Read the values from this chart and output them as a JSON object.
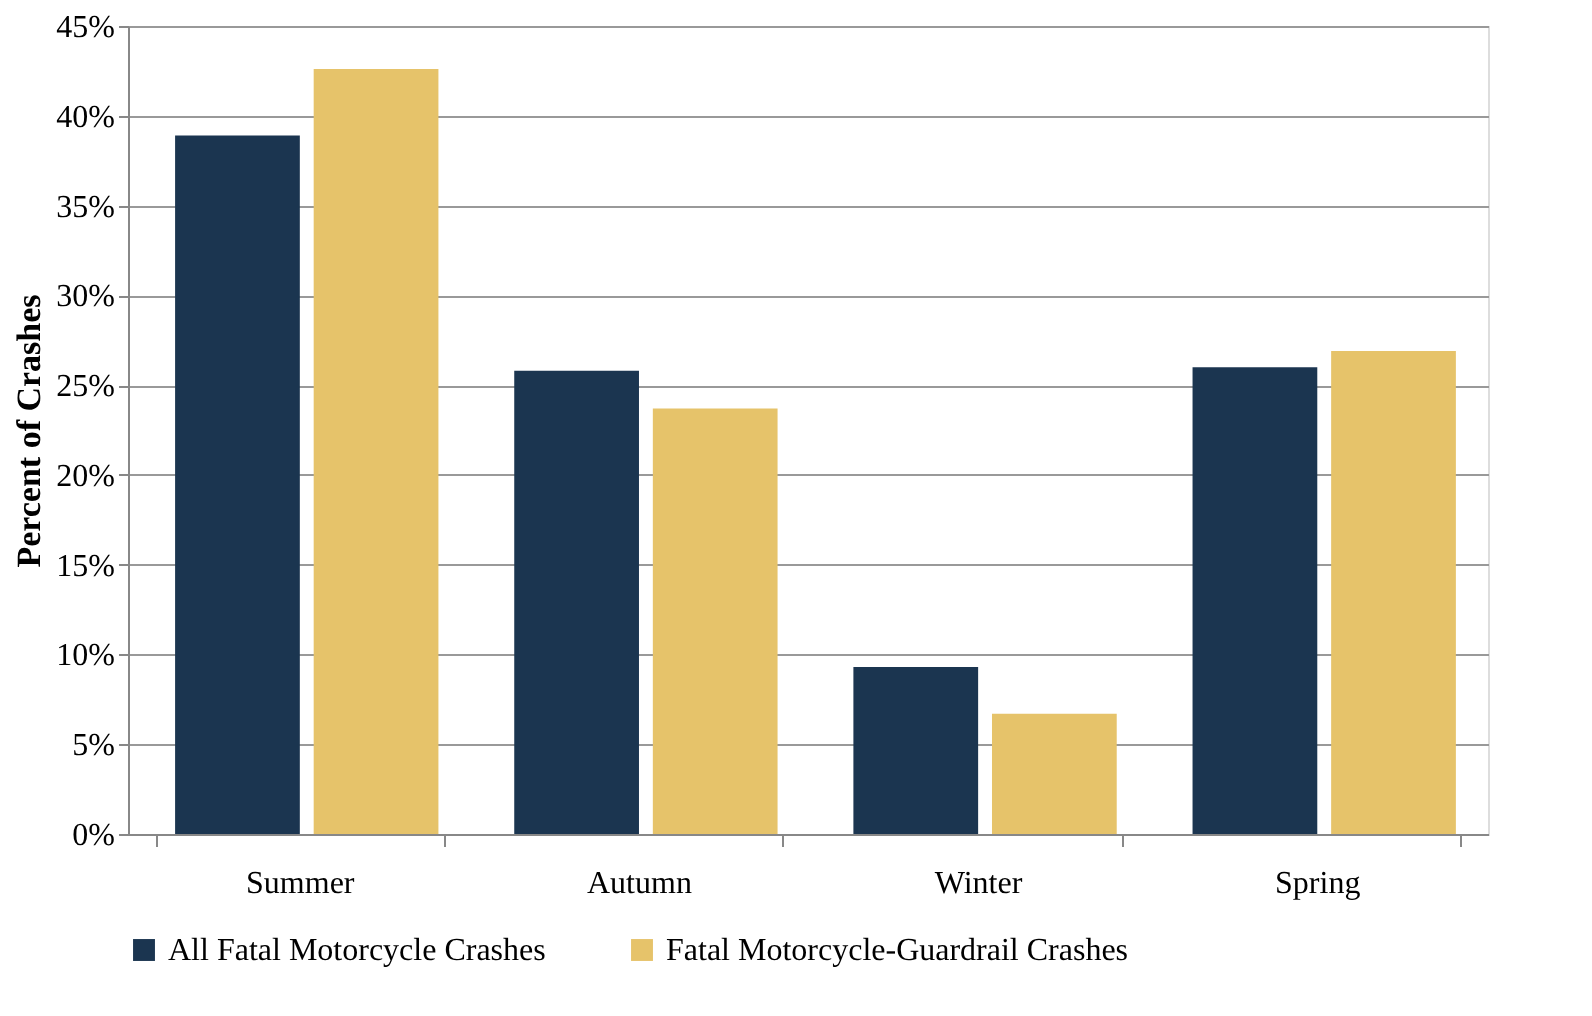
{
  "chart_data": {
    "type": "bar",
    "ylabel": "Percent of Crashes",
    "categories": [
      "Summer",
      "Autumn",
      "Winter",
      "Spring"
    ],
    "series": [
      {
        "name": "All Fatal Motorcycle Crashes",
        "color": "#1b3550",
        "values": [
          38.9,
          25.8,
          9.3,
          26.0
        ]
      },
      {
        "name": "Fatal Motorcycle-Guardrail Crashes",
        "color": "#e6c36a",
        "values": [
          42.6,
          23.7,
          6.7,
          26.9
        ]
      }
    ],
    "ylim": [
      0,
      45
    ],
    "yticks": [
      {
        "value": 0,
        "label": "0%"
      },
      {
        "value": 5,
        "label": "5%"
      },
      {
        "value": 10,
        "label": "10%"
      },
      {
        "value": 15,
        "label": "15%"
      },
      {
        "value": 20,
        "label": "20%"
      },
      {
        "value": 25,
        "label": "25%"
      },
      {
        "value": 30,
        "label": "30%"
      },
      {
        "value": 35,
        "label": "35%"
      },
      {
        "value": 40,
        "label": "40%"
      },
      {
        "value": 45,
        "label": "45%"
      }
    ],
    "grid": "y",
    "legend": "bottom"
  }
}
